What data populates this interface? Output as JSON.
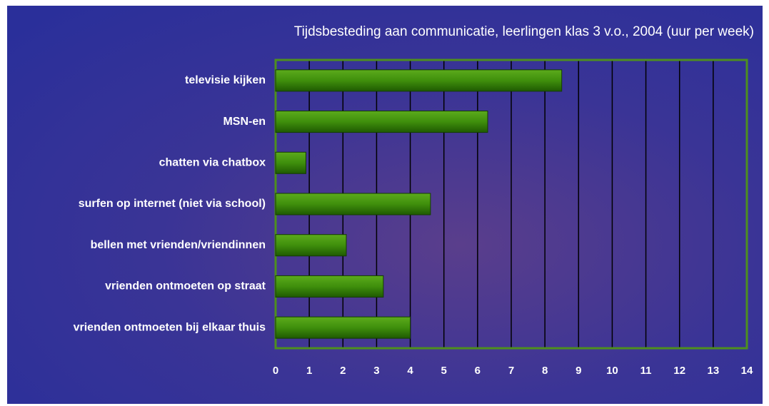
{
  "chart_data": {
    "type": "bar",
    "orientation": "horizontal",
    "title": "Tijdsbesteding aan communicatie, leerlingen klas 3 v.o., 2004 (uur per week)",
    "categories": [
      "televisie kijken",
      "MSN-en",
      "chatten via chatbox",
      "surfen op internet (niet via school)",
      "bellen met vrienden/vriendinnen",
      "vrienden ontmoeten op straat",
      "vrienden ontmoeten bij elkaar thuis"
    ],
    "values": [
      8.5,
      6.3,
      0.9,
      4.6,
      2.1,
      3.2,
      4.0
    ],
    "color": "#3f8f0c",
    "xlim": [
      0,
      14
    ],
    "xticks": [
      0,
      1,
      2,
      3,
      4,
      5,
      6,
      7,
      8,
      9,
      10,
      11,
      12,
      13,
      14
    ],
    "grid": true
  }
}
